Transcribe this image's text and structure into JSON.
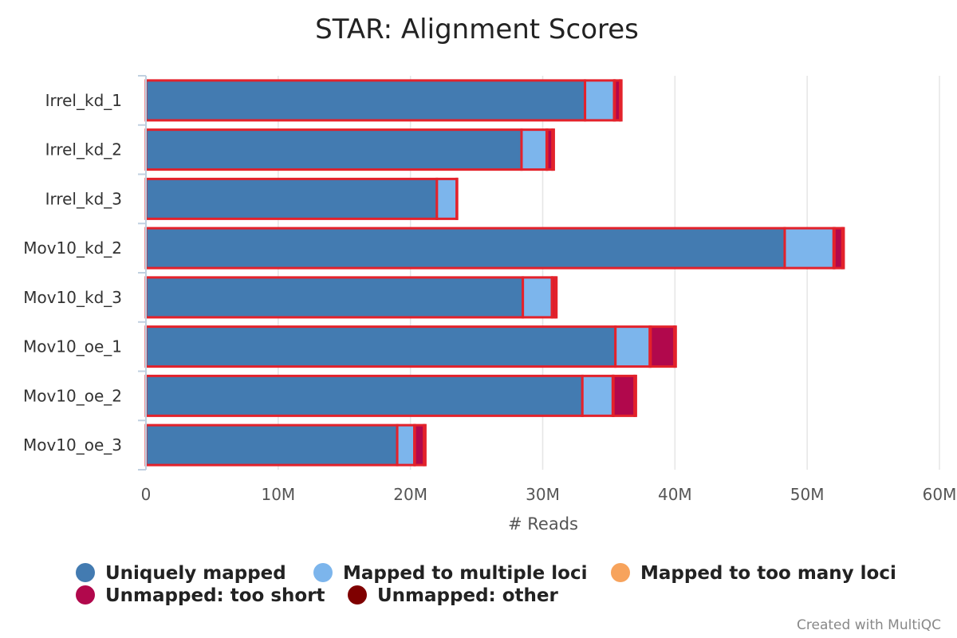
{
  "chart_data": {
    "type": "bar",
    "orientation": "horizontal",
    "stacked": true,
    "title": "STAR: Alignment Scores",
    "xlabel": "# Reads",
    "ylabel": "",
    "xlim": [
      0,
      60000000
    ],
    "x_ticks": [
      {
        "value": 0,
        "label": "0"
      },
      {
        "value": 10000000,
        "label": "10M"
      },
      {
        "value": 20000000,
        "label": "20M"
      },
      {
        "value": 30000000,
        "label": "30M"
      },
      {
        "value": 40000000,
        "label": "40M"
      },
      {
        "value": 50000000,
        "label": "50M"
      },
      {
        "value": 60000000,
        "label": "60M"
      }
    ],
    "grid": true,
    "legend_position": "bottom",
    "bar_outline_color": "#e3222b",
    "categories": [
      "Irrel_kd_1",
      "Irrel_kd_2",
      "Irrel_kd_3",
      "Mov10_kd_2",
      "Mov10_kd_3",
      "Mov10_oe_1",
      "Mov10_oe_2",
      "Mov10_oe_3"
    ],
    "series": [
      {
        "name": "Uniquely mapped",
        "color": "#437bb1",
        "values": [
          33200000,
          28400000,
          22000000,
          48300000,
          28500000,
          35500000,
          33000000,
          19000000
        ]
      },
      {
        "name": "Mapped to multiple loci",
        "color": "#7cb5ec",
        "values": [
          2200000,
          1900000,
          1500000,
          3700000,
          2200000,
          2600000,
          2300000,
          1300000
        ]
      },
      {
        "name": "Mapped to too many loci",
        "color": "#f7a35c",
        "values": [
          50000,
          40000,
          30000,
          60000,
          40000,
          60000,
          50000,
          30000
        ]
      },
      {
        "name": "Unmapped: too short",
        "color": "#b1084c",
        "values": [
          400000,
          400000,
          0,
          600000,
          200000,
          1800000,
          1600000,
          700000
        ]
      },
      {
        "name": "Unmapped: other",
        "color": "#7f0000",
        "values": [
          100000,
          100000,
          0,
          100000,
          100000,
          100000,
          100000,
          100000
        ]
      }
    ]
  },
  "footer": {
    "credit": "Created with MultiQC"
  }
}
